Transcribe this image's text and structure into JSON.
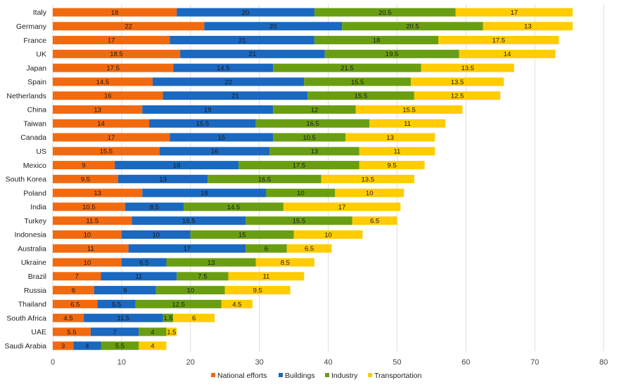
{
  "chart_data": {
    "type": "bar",
    "orientation": "horizontal",
    "stacked": true,
    "title": "",
    "xlabel": "",
    "ylabel": "",
    "xlim": [
      0,
      80
    ],
    "x_ticks": [
      0,
      10,
      20,
      30,
      40,
      50,
      60,
      70,
      80
    ],
    "grid": "vertical",
    "legend_position": "bottom",
    "categories": [
      "Italy",
      "Germany",
      "France",
      "UK",
      "Japan",
      "Spain",
      "Netherlands",
      "China",
      "Taiwan",
      "Canada",
      "US",
      "Mexico",
      "South Korea",
      "Poland",
      "India",
      "Turkey",
      "Indonesia",
      "Australia",
      "Ukraine",
      "Brazil",
      "Russia",
      "Thailand",
      "South Africa",
      "UAE",
      "Saudi Arabia"
    ],
    "series": [
      {
        "name": "National efforts",
        "color": "#f26a10",
        "values": [
          18,
          22,
          17,
          18.5,
          17.5,
          14.5,
          16,
          13,
          14,
          17,
          15.5,
          9,
          9.5,
          13,
          10.5,
          11.5,
          10,
          11,
          10,
          7,
          6,
          6.5,
          4.5,
          5.5,
          3
        ]
      },
      {
        "name": "Buildings",
        "color": "#1a68c0",
        "values": [
          20,
          20,
          21,
          21,
          14.5,
          22,
          21,
          19,
          15.5,
          15,
          16,
          18,
          13,
          18,
          8.5,
          16.5,
          10,
          17,
          6.5,
          11,
          9,
          5.5,
          11.5,
          7,
          4
        ]
      },
      {
        "name": "Industry",
        "color": "#6a9e12",
        "values": [
          20.5,
          20.5,
          18,
          19.5,
          21.5,
          15.5,
          15.5,
          12,
          16.5,
          10.5,
          13,
          17.5,
          16.5,
          10,
          14.5,
          15.5,
          15,
          6,
          13,
          7.5,
          10,
          12.5,
          1.5,
          4,
          5.5
        ]
      },
      {
        "name": "Transportation",
        "color": "#ffcc00",
        "values": [
          17,
          13,
          17.5,
          14,
          13.5,
          13.5,
          12.5,
          15.5,
          11,
          13,
          11,
          9.5,
          13.5,
          10,
          17,
          6.5,
          10,
          6.5,
          8.5,
          11,
          9.5,
          4.5,
          6,
          1.5,
          4
        ]
      }
    ]
  }
}
